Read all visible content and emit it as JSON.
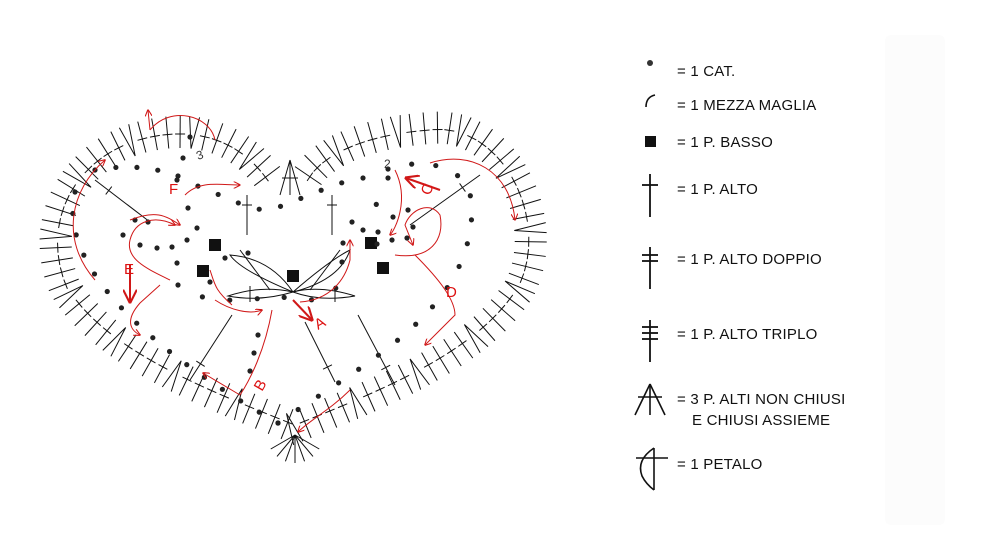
{
  "diagram": {
    "ink_color": "#111111",
    "arrow_color": "#d01818",
    "step_labels": [
      "A",
      "B",
      "C",
      "D",
      "E",
      "F"
    ],
    "round_numbers": [
      "2",
      "3"
    ]
  },
  "legend": {
    "items": [
      {
        "symbol": "dot",
        "label": "= 1 CAT."
      },
      {
        "symbol": "arc",
        "label": "= 1 MEZZA MAGLIA"
      },
      {
        "symbol": "square",
        "label": "= 1 P. BASSO"
      },
      {
        "symbol": "cross-1",
        "label": "= 1 P. ALTO"
      },
      {
        "symbol": "cross-2",
        "label": "= 1 P. ALTO  DOPPIO"
      },
      {
        "symbol": "cross-3",
        "label": "= 1 P. ALTO  TRIPLO"
      },
      {
        "symbol": "fan-3",
        "label": "= 3 P. ALTI  NON CHIUSI",
        "label2": "E CHIUSI ASSIEME"
      },
      {
        "symbol": "petal",
        "label": "= 1 PETALO"
      }
    ]
  }
}
